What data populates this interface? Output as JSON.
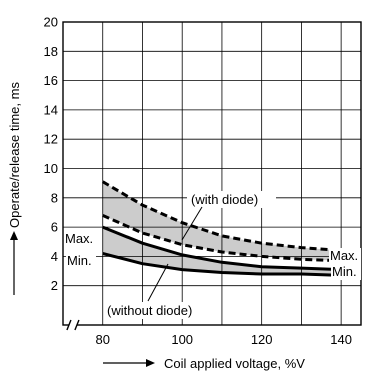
{
  "chart_data": {
    "type": "line",
    "title": "",
    "xlabel": "Coil applied voltage, %V",
    "ylabel": "Operate/release time, ms",
    "xlim": [
      70,
      145
    ],
    "ylim": [
      0,
      20
    ],
    "x_ticks": [
      80,
      100,
      120,
      140
    ],
    "y_ticks": [
      2,
      4,
      6,
      8,
      10,
      12,
      14,
      16,
      18,
      20
    ],
    "grid": true,
    "axis_break": "x",
    "x": [
      80,
      90,
      100,
      110,
      120,
      130,
      140
    ],
    "series": [
      {
        "group": "with diode",
        "bound": "Max.",
        "style": "dashed",
        "values": [
          9.1,
          7.5,
          6.3,
          5.4,
          4.9,
          4.6,
          4.4
        ]
      },
      {
        "group": "with diode",
        "bound": "Min.",
        "style": "dashed",
        "values": [
          6.8,
          5.6,
          4.8,
          4.3,
          4.0,
          3.8,
          3.7
        ]
      },
      {
        "group": "without diode",
        "bound": "Max.",
        "style": "solid",
        "values": [
          6.0,
          4.9,
          4.1,
          3.6,
          3.3,
          3.2,
          3.1
        ]
      },
      {
        "group": "without diode",
        "bound": "Min.",
        "style": "solid",
        "values": [
          4.2,
          3.5,
          3.1,
          2.9,
          2.8,
          2.8,
          2.7
        ]
      }
    ],
    "annotations": {
      "with_diode": "(with diode)",
      "without_diode": "(without diode)",
      "max_left": "Max.",
      "min_left": "Min.",
      "max_right": "Max.",
      "min_right": "Min."
    },
    "colors": {
      "band": "#cccccc",
      "line": "#000000",
      "grid": "#000000"
    }
  }
}
